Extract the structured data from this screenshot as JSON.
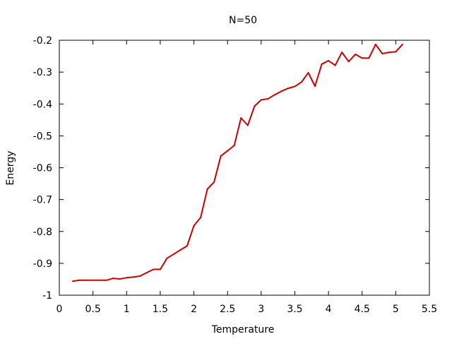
{
  "chart_data": {
    "type": "line",
    "title": "N=50",
    "xlabel": "Temperature",
    "ylabel": "Energy",
    "xlim": [
      0,
      5.5
    ],
    "ylim": [
      -1,
      -0.2
    ],
    "x_ticks": [
      0,
      0.5,
      1,
      1.5,
      2,
      2.5,
      3,
      3.5,
      4,
      4.5,
      5,
      5.5
    ],
    "x_tick_labels": [
      "0",
      "0.5",
      "1",
      "1.5",
      "2",
      "2.5",
      "3",
      "3.5",
      "4",
      "4.5",
      "5",
      "5.5"
    ],
    "y_ticks": [
      -1,
      -0.9,
      -0.8,
      -0.7,
      -0.6,
      -0.5,
      -0.4,
      -0.3,
      -0.2
    ],
    "y_tick_labels": [
      "-1",
      "-0.9",
      "-0.8",
      "-0.7",
      "-0.6",
      "-0.5",
      "-0.4",
      "-0.3",
      "-0.2"
    ],
    "grid": false,
    "legend": "none",
    "series": [
      {
        "color": "#cc0000",
        "x": [
          0.2,
          0.3,
          0.4,
          0.5,
          0.6,
          0.7,
          0.8,
          0.9,
          1.0,
          1.1,
          1.2,
          1.3,
          1.4,
          1.5,
          1.6,
          1.7,
          1.8,
          1.9,
          2.0,
          2.1,
          2.2,
          2.3,
          2.4,
          2.5,
          2.6,
          2.7,
          2.8,
          2.9,
          3.0,
          3.1,
          3.2,
          3.3,
          3.4,
          3.5,
          3.6,
          3.7,
          3.8,
          3.9,
          4.0,
          4.1,
          4.2,
          4.3,
          4.4,
          4.5,
          4.6,
          4.7,
          4.8,
          4.9,
          5.0,
          5.1
        ],
        "y": [
          -0.956,
          -0.953,
          -0.953,
          -0.953,
          -0.953,
          -0.953,
          -0.947,
          -0.949,
          -0.945,
          -0.943,
          -0.94,
          -0.929,
          -0.919,
          -0.919,
          -0.884,
          -0.871,
          -0.858,
          -0.845,
          -0.782,
          -0.756,
          -0.667,
          -0.645,
          -0.563,
          -0.547,
          -0.53,
          -0.444,
          -0.467,
          -0.407,
          -0.387,
          -0.384,
          -0.371,
          -0.36,
          -0.351,
          -0.345,
          -0.331,
          -0.302,
          -0.344,
          -0.275,
          -0.264,
          -0.279,
          -0.238,
          -0.267,
          -0.244,
          -0.256,
          -0.256,
          -0.213,
          -0.242,
          -0.238,
          -0.236,
          -0.213
        ]
      }
    ]
  }
}
